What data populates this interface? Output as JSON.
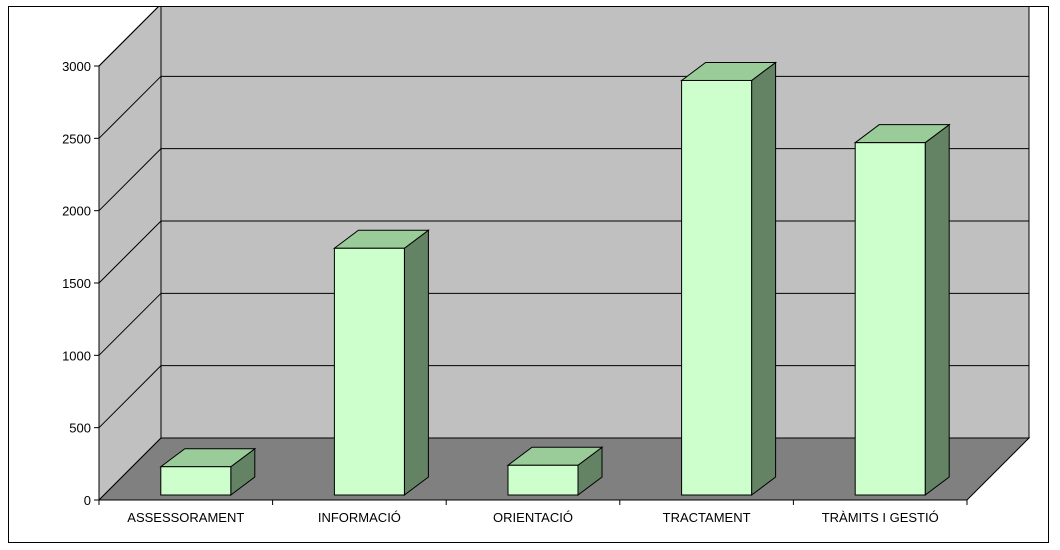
{
  "chart_data": {
    "type": "bar",
    "style": "3d-column",
    "title": "",
    "xlabel": "",
    "ylabel": "",
    "categories": [
      "ASSESSORAMENT",
      "INFORMACIÓ",
      "ORIENTACIÓ",
      "TRACTAMENT",
      "TRÀMITS I GESTIÓ"
    ],
    "values": [
      230,
      1740,
      240,
      2900,
      2470
    ],
    "ylim": [
      0,
      3000
    ],
    "yticks": [
      "0",
      "500",
      "1000",
      "1500",
      "2000",
      "2500",
      "3000"
    ],
    "grid": true,
    "legend": "none",
    "colors": {
      "bar_front": "#ccffcc",
      "bar_top": "#99cc99",
      "bar_side": "#648264",
      "wall": "#c0c0c0",
      "floor": "#808080",
      "gridline": "#000000"
    }
  }
}
